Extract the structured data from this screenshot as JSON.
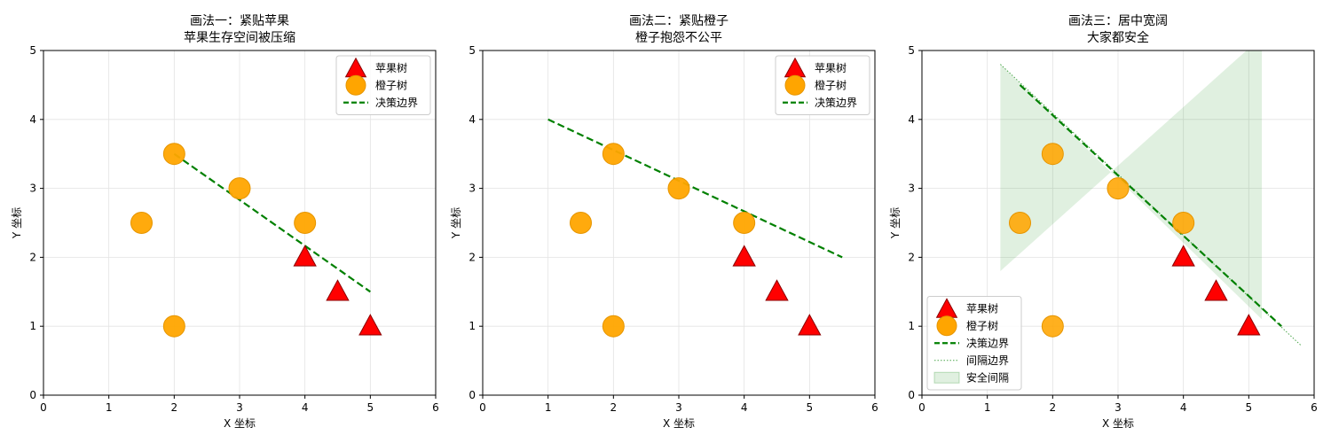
{
  "chart_data": [
    {
      "type": "scatter",
      "title": [
        "画法一：紧贴苹果",
        "苹果生存空间被压缩"
      ],
      "xlabel": "X 坐标",
      "ylabel": "Y 坐标",
      "xlim": [
        0,
        6
      ],
      "ylim": [
        0,
        5
      ],
      "xticks": [
        "0",
        "1",
        "2",
        "3",
        "4",
        "5",
        "6"
      ],
      "yticks": [
        "0",
        "1",
        "2",
        "3",
        "4",
        "5"
      ],
      "grid": true,
      "legend_position": "top-right",
      "series": [
        {
          "name": "苹果树",
          "marker": "triangle",
          "color": "#ff0000",
          "points": [
            [
              4,
              2
            ],
            [
              4.5,
              1.5
            ],
            [
              5,
              1
            ]
          ]
        },
        {
          "name": "橙子树",
          "marker": "circle",
          "color": "#ffa500",
          "points": [
            [
              2,
              3.5
            ],
            [
              1.5,
              2.5
            ],
            [
              3,
              3
            ],
            [
              2,
              1
            ],
            [
              4,
              2.5
            ]
          ]
        },
        {
          "name": "决策边界",
          "type": "line",
          "style": "dashed",
          "color": "#008000",
          "points": [
            [
              2,
              3.5
            ],
            [
              5,
              1.5
            ]
          ]
        }
      ]
    },
    {
      "type": "scatter",
      "title": [
        "画法二：紧贴橙子",
        "橙子抱怨不公平"
      ],
      "xlabel": "X 坐标",
      "ylabel": "Y 坐标",
      "xlim": [
        0,
        6
      ],
      "ylim": [
        0,
        5
      ],
      "xticks": [
        "0",
        "1",
        "2",
        "3",
        "4",
        "5",
        "6"
      ],
      "yticks": [
        "0",
        "1",
        "2",
        "3",
        "4",
        "5"
      ],
      "grid": true,
      "legend_position": "top-right",
      "series": [
        {
          "name": "苹果树",
          "marker": "triangle",
          "color": "#ff0000",
          "points": [
            [
              4,
              2
            ],
            [
              4.5,
              1.5
            ],
            [
              5,
              1
            ]
          ]
        },
        {
          "name": "橙子树",
          "marker": "circle",
          "color": "#ffa500",
          "points": [
            [
              2,
              3.5
            ],
            [
              1.5,
              2.5
            ],
            [
              3,
              3
            ],
            [
              2,
              1
            ],
            [
              4,
              2.5
            ]
          ]
        },
        {
          "name": "决策边界",
          "type": "line",
          "style": "dashed",
          "color": "#008000",
          "points": [
            [
              1,
              4
            ],
            [
              5.5,
              2
            ]
          ]
        }
      ]
    },
    {
      "type": "scatter",
      "title": [
        "画法三：居中宽阔",
        "大家都安全"
      ],
      "xlabel": "X 坐标",
      "ylabel": "Y 坐标",
      "xlim": [
        0,
        6
      ],
      "ylim": [
        0,
        5
      ],
      "xticks": [
        "0",
        "1",
        "2",
        "3",
        "4",
        "5",
        "6"
      ],
      "yticks": [
        "0",
        "1",
        "2",
        "3",
        "4",
        "5"
      ],
      "grid": true,
      "legend_position": "bottom-left",
      "series": [
        {
          "name": "苹果树",
          "marker": "triangle",
          "color": "#ff0000",
          "points": [
            [
              4,
              2
            ],
            [
              4.5,
              1.5
            ],
            [
              5,
              1
            ]
          ]
        },
        {
          "name": "橙子树",
          "marker": "circle",
          "color": "#ffa500",
          "points": [
            [
              2,
              3.5
            ],
            [
              1.5,
              2.5
            ],
            [
              3,
              3
            ],
            [
              2,
              1
            ],
            [
              4,
              2.5
            ]
          ]
        },
        {
          "name": "决策边界",
          "type": "line",
          "style": "dashed",
          "color": "#008000",
          "points": [
            [
              1.5,
              4.5
            ],
            [
              5.5,
              1
            ]
          ]
        },
        {
          "name": "间隔边界",
          "type": "line",
          "style": "dotted",
          "color": "#008000",
          "points": [
            [
              1.2,
              4.8
            ],
            [
              5.8,
              0.72
            ]
          ]
        },
        {
          "name": "安全间隔",
          "type": "area",
          "color": "#008000",
          "opacity": 0.12,
          "polygon": [
            [
              1.2,
              4.8
            ],
            [
              1.2,
              1.8
            ],
            [
              5.2,
              5.2
            ],
            [
              5.2,
              1.1
            ]
          ]
        }
      ]
    }
  ]
}
